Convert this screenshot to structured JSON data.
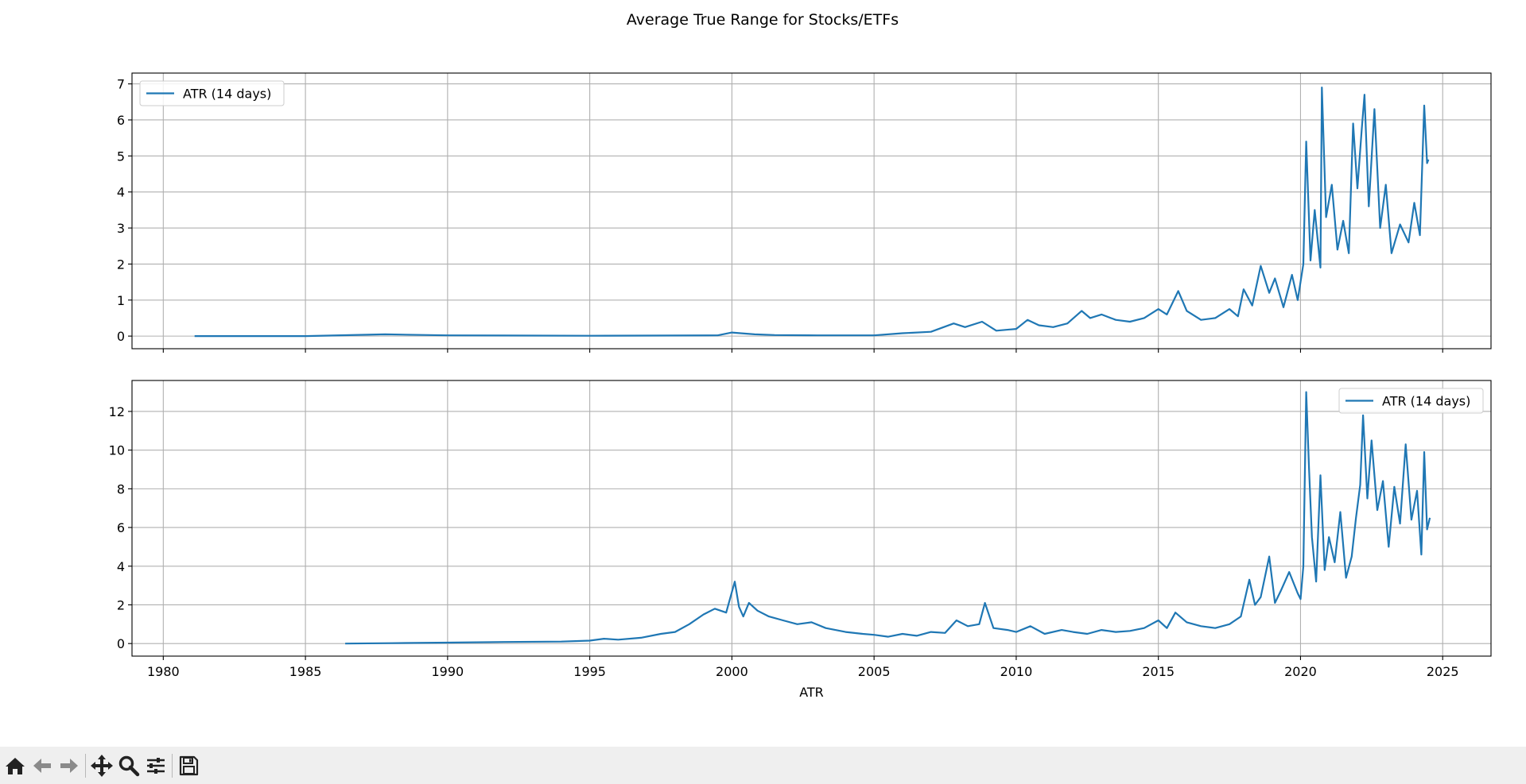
{
  "figure_title": "Average True Range for Stocks/ETFs",
  "colors": {
    "series": "#1f77b4",
    "grid": "#b0b0b0",
    "axis": "#000000",
    "toolbar_bg": "#efefef",
    "icon": "#222222"
  },
  "toolbar": {
    "icons": [
      "home-icon",
      "back-icon",
      "forward-icon",
      "pan-icon",
      "zoom-icon",
      "configure-subplots-icon",
      "save-icon"
    ]
  },
  "chart_data": [
    {
      "type": "line",
      "title": "",
      "xlabel": "",
      "ylabel": "",
      "xlim": [
        1978.9,
        2026.7
      ],
      "ylim": [
        -0.35,
        7.3
      ],
      "yticks": [
        0,
        1,
        2,
        3,
        4,
        5,
        6,
        7
      ],
      "xticks": [
        1980,
        1985,
        1990,
        1995,
        2000,
        2005,
        2010,
        2015,
        2020,
        2025
      ],
      "show_xtick_labels": false,
      "grid": true,
      "legend": "upper left",
      "series": [
        {
          "name": "ATR (14 days)",
          "x": [
            1981.1,
            1985,
            1987.8,
            1990,
            1995,
            1999.5,
            2000.0,
            2000.3,
            2000.8,
            2001.5,
            2003,
            2005,
            2006,
            2007,
            2007.8,
            2008.2,
            2008.8,
            2009.3,
            2010,
            2010.4,
            2010.8,
            2011.3,
            2011.8,
            2012.3,
            2012.6,
            2013,
            2013.5,
            2014,
            2014.5,
            2015,
            2015.3,
            2015.7,
            2016,
            2016.5,
            2017,
            2017.5,
            2017.8,
            2018.0,
            2018.3,
            2018.6,
            2018.9,
            2019.1,
            2019.4,
            2019.7,
            2019.9,
            2020.1,
            2020.2,
            2020.35,
            2020.5,
            2020.7,
            2020.75,
            2020.9,
            2021.1,
            2021.3,
            2021.5,
            2021.7,
            2021.85,
            2022.0,
            2022.15,
            2022.25,
            2022.4,
            2022.6,
            2022.8,
            2023.0,
            2023.2,
            2023.5,
            2023.8,
            2024.0,
            2024.2,
            2024.35,
            2024.45,
            2024.5
          ],
          "y": [
            0,
            0,
            0.05,
            0.02,
            0.01,
            0.02,
            0.1,
            0.08,
            0.05,
            0.03,
            0.02,
            0.02,
            0.08,
            0.12,
            0.35,
            0.25,
            0.4,
            0.15,
            0.2,
            0.45,
            0.3,
            0.25,
            0.35,
            0.7,
            0.5,
            0.6,
            0.45,
            0.4,
            0.5,
            0.75,
            0.6,
            1.25,
            0.7,
            0.45,
            0.5,
            0.75,
            0.55,
            1.3,
            0.85,
            1.95,
            1.2,
            1.6,
            0.8,
            1.7,
            1.0,
            2.0,
            5.4,
            2.1,
            3.5,
            1.9,
            6.9,
            3.3,
            4.2,
            2.4,
            3.2,
            2.3,
            5.9,
            4.1,
            5.7,
            6.7,
            3.6,
            6.3,
            3.0,
            4.2,
            2.3,
            3.1,
            2.6,
            3.7,
            2.8,
            6.4,
            4.8,
            4.9
          ]
        }
      ]
    },
    {
      "type": "line",
      "title": "",
      "xlabel": "ATR",
      "ylabel": "",
      "xlim": [
        1978.9,
        2026.7
      ],
      "ylim": [
        -0.65,
        13.6
      ],
      "yticks": [
        0,
        2,
        4,
        6,
        8,
        10,
        12
      ],
      "xticks": [
        1980,
        1985,
        1990,
        1995,
        2000,
        2005,
        2010,
        2015,
        2020,
        2025
      ],
      "show_xtick_labels": true,
      "grid": true,
      "legend": "upper right",
      "series": [
        {
          "name": "ATR (14 days)",
          "x": [
            1986.4,
            1988,
            1990,
            1992,
            1994,
            1995.0,
            1995.5,
            1996,
            1996.8,
            1997.5,
            1998,
            1998.5,
            1999.0,
            1999.4,
            1999.8,
            2000.1,
            2000.25,
            2000.4,
            2000.6,
            2000.9,
            2001.3,
            2001.8,
            2002.3,
            2002.8,
            2003.3,
            2004,
            2004.6,
            2005,
            2005.5,
            2006,
            2006.5,
            2007,
            2007.5,
            2007.9,
            2008.3,
            2008.7,
            2008.9,
            2009.2,
            2009.7,
            2010,
            2010.5,
            2011,
            2011.6,
            2012,
            2012.5,
            2013,
            2013.5,
            2014,
            2014.5,
            2015,
            2015.3,
            2015.6,
            2016,
            2016.5,
            2017,
            2017.5,
            2017.9,
            2018.2,
            2018.4,
            2018.6,
            2018.9,
            2019.1,
            2019.3,
            2019.6,
            2019.9,
            2020.0,
            2020.1,
            2020.2,
            2020.3,
            2020.4,
            2020.55,
            2020.7,
            2020.85,
            2021.0,
            2021.2,
            2021.4,
            2021.6,
            2021.8,
            2021.95,
            2022.1,
            2022.2,
            2022.35,
            2022.5,
            2022.7,
            2022.9,
            2023.1,
            2023.3,
            2023.5,
            2023.7,
            2023.9,
            2024.1,
            2024.25,
            2024.35,
            2024.45,
            2024.55
          ],
          "y": [
            0,
            0.02,
            0.05,
            0.08,
            0.1,
            0.15,
            0.25,
            0.2,
            0.3,
            0.5,
            0.6,
            1.0,
            1.5,
            1.8,
            1.6,
            3.2,
            1.9,
            1.4,
            2.1,
            1.7,
            1.4,
            1.2,
            1.0,
            1.1,
            0.8,
            0.6,
            0.5,
            0.45,
            0.35,
            0.5,
            0.4,
            0.6,
            0.55,
            1.2,
            0.9,
            1.0,
            2.1,
            0.8,
            0.7,
            0.6,
            0.9,
            0.5,
            0.7,
            0.6,
            0.5,
            0.7,
            0.6,
            0.65,
            0.8,
            1.2,
            0.8,
            1.6,
            1.1,
            0.9,
            0.8,
            1.0,
            1.4,
            3.3,
            2.0,
            2.4,
            4.5,
            2.1,
            2.7,
            3.7,
            2.6,
            2.3,
            4.0,
            13.0,
            9.0,
            5.5,
            3.2,
            8.7,
            3.8,
            5.5,
            4.2,
            6.8,
            3.4,
            4.5,
            6.5,
            8.2,
            11.8,
            7.5,
            10.5,
            6.9,
            8.4,
            5.0,
            8.1,
            6.2,
            10.3,
            6.4,
            7.9,
            4.6,
            9.9,
            5.9,
            6.5
          ]
        }
      ]
    }
  ]
}
